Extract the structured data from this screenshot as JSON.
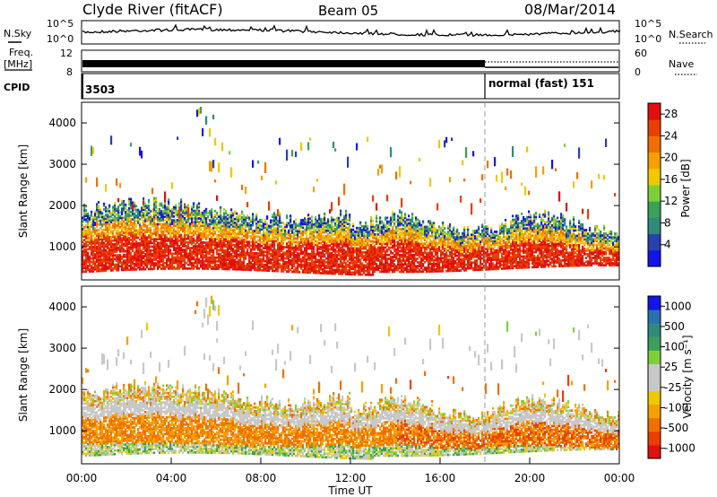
{
  "header": {
    "station": "Clyde River (fitACF)",
    "beam": "Beam 05",
    "date": "08/Mar/2014"
  },
  "strips": {
    "nsky_label": "N.Sky",
    "nsky_ticks": [
      "10^5",
      "10^0"
    ],
    "nsearch_label": "N.Search",
    "nsearch_ticks": [
      "10^5",
      "10^0"
    ],
    "freq_label": "Freq.",
    "freq_unit": "[MHz]",
    "freq_ticks": [
      "12",
      "8"
    ],
    "nave_label": "Nave",
    "nave_ticks": [
      "60",
      "0"
    ],
    "cpid_label": "CPID",
    "cpid_first": "3503",
    "cpid_second": "normal (fast) 151"
  },
  "colors": {
    "power_scale": [
      "#1414e6",
      "#2a3fb0",
      "#2f8a7c",
      "#3aa05a",
      "#7dcf3a",
      "#f0c800",
      "#f5a000",
      "#ef7000",
      "#e84000",
      "#e01010"
    ],
    "velocity_scale": [
      "#e01010",
      "#e84000",
      "#ef7000",
      "#f5a000",
      "#f0c800",
      "#c8c8c8",
      "#c8c8c8",
      "#7dcf3a",
      "#3aa05a",
      "#2f8a7c",
      "#2a6fb0",
      "#1414e6"
    ]
  },
  "chart_data": [
    {
      "type": "heatmap",
      "name": "power",
      "ylabel": "Slant Range [km]",
      "yticks": [
        "1000",
        "2000",
        "3000",
        "4000"
      ],
      "ylim": [
        200,
        4500
      ],
      "colorbar_label": "Power [dB]",
      "colorbar_ticks": [
        "4",
        "8",
        "12",
        "16",
        "20",
        "24",
        "28"
      ],
      "colorbar_range": [
        0,
        30
      ]
    },
    {
      "type": "heatmap",
      "name": "velocity",
      "ylabel": "Slant Range [km]",
      "yticks": [
        "1000",
        "2000",
        "3000",
        "4000"
      ],
      "ylim": [
        200,
        4500
      ],
      "xlabel": "Time UT",
      "xticks": [
        "00:00",
        "04:00",
        "08:00",
        "12:00",
        "16:00",
        "20:00",
        "00:00"
      ],
      "xlim_hours": [
        0,
        24
      ],
      "mode_change_hour": 18,
      "colorbar_label": "Velocity [m s⁻¹]",
      "colorbar_ticks": [
        "1000",
        "500",
        "100",
        "25",
        "-25",
        "-100",
        "-500",
        "-1000"
      ]
    }
  ]
}
